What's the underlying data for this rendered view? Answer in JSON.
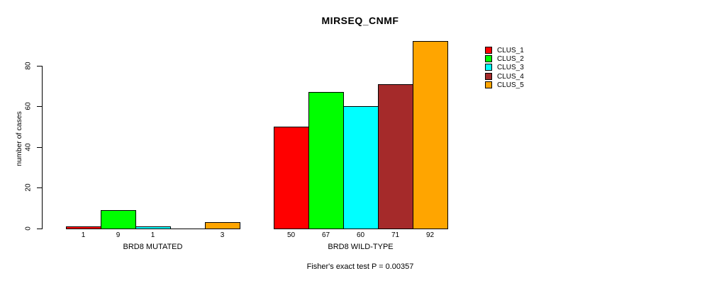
{
  "title": "MIRSEQ_CNMF",
  "caption": "Fisher's exact test P = 0.00357",
  "chart_data": {
    "type": "bar",
    "title": "MIRSEQ_CNMF",
    "xlabel": "",
    "ylabel": "number of cases",
    "ylim": [
      0,
      92
    ],
    "yticks": [
      "0",
      "20",
      "40",
      "60",
      "80"
    ],
    "grid": false,
    "legend_position": "right-outside",
    "legend_entries": [
      "CLUS_1",
      "CLUS_2",
      "CLUS_3",
      "CLUS_4",
      "CLUS_5"
    ],
    "series_colors": [
      "#FF0000",
      "#00FF00",
      "#00FFFF",
      "#A52A2A",
      "#FFA500"
    ],
    "groups": [
      {
        "label": "BRD8 MUTATED",
        "values": [
          1,
          9,
          1,
          0,
          3
        ],
        "bar_labels": [
          "1",
          "9",
          "1",
          "",
          "3"
        ]
      },
      {
        "label": "BRD8 WILD-TYPE",
        "values": [
          50,
          67,
          60,
          71,
          92
        ],
        "bar_labels": [
          "50",
          "67",
          "60",
          "71",
          "92"
        ]
      }
    ]
  }
}
